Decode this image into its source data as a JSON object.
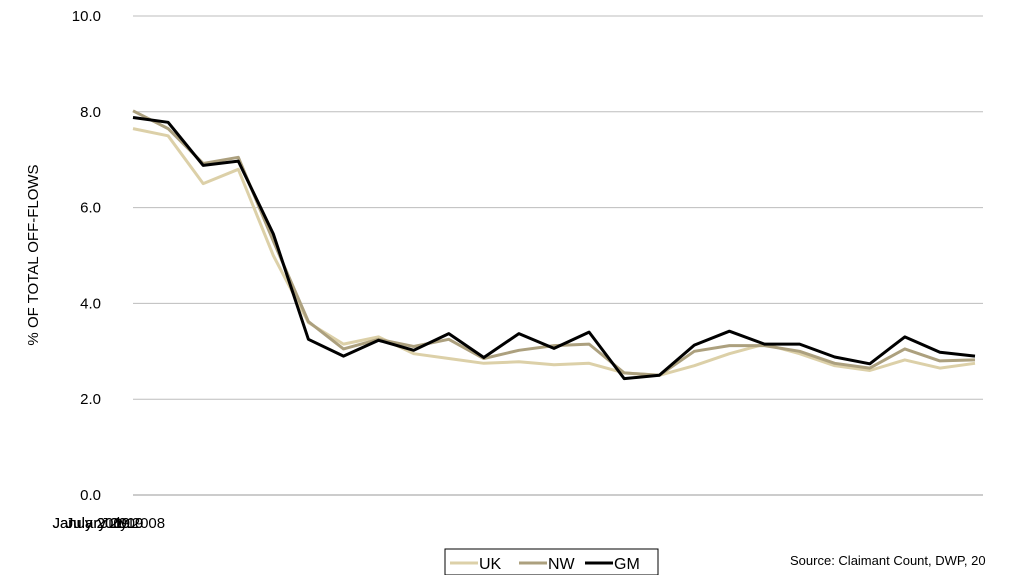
{
  "chart_data": {
    "type": "line",
    "x": [
      "July 2008",
      "Aug 2008",
      "Sep 2008",
      "Oct 2008",
      "Nov 2008",
      "Dec 2008",
      "Jan 2009",
      "Feb 2009",
      "Mar 2009",
      "Apr 2009",
      "May 2009",
      "Jun 2009",
      "Jul 2009",
      "Aug 2009",
      "Sep 2009",
      "Oct 2009",
      "Nov 2009",
      "Dec 2009",
      "Jan 2010",
      "Feb 2010",
      "Mar 2010",
      "Apr 2010",
      "May 2010",
      "Jun 2010",
      "Jul 2010"
    ],
    "x_tick_labels": [
      "July 2008",
      "January 2009",
      "July 2009",
      "January 2010",
      "July 2010"
    ],
    "ylabel": "% OF TOTAL OFF-FLOWS",
    "ylim": [
      0,
      10
    ],
    "yticks": [
      "0.0",
      "2.0",
      "4.0",
      "6.0",
      "8.0",
      "10.0"
    ],
    "grid": true,
    "legend_position": "bottom-center",
    "series": [
      {
        "name": "UK",
        "color": "#dcd0a8",
        "values": [
          7.65,
          7.5,
          6.5,
          6.8,
          5.0,
          3.6,
          3.15,
          3.3,
          2.95,
          2.85,
          2.75,
          2.78,
          2.72,
          2.75,
          2.55,
          2.5,
          2.7,
          2.95,
          3.15,
          2.95,
          2.7,
          2.6,
          2.82,
          2.65,
          2.75
        ]
      },
      {
        "name": "NW",
        "color": "#aca07e",
        "values": [
          8.02,
          7.65,
          6.92,
          7.05,
          5.3,
          3.62,
          3.05,
          3.25,
          3.1,
          3.25,
          2.85,
          3.02,
          3.12,
          3.15,
          2.55,
          2.5,
          3.0,
          3.12,
          3.12,
          3.0,
          2.75,
          2.65,
          3.05,
          2.8,
          2.82
        ]
      },
      {
        "name": "GM",
        "color": "#000000",
        "values": [
          7.88,
          7.78,
          6.88,
          6.97,
          5.45,
          3.25,
          2.9,
          3.23,
          3.02,
          3.37,
          2.87,
          3.37,
          3.06,
          3.4,
          2.43,
          2.5,
          3.13,
          3.42,
          3.15,
          3.15,
          2.88,
          2.74,
          3.3,
          2.98,
          2.9
        ]
      }
    ]
  },
  "source_text": "Source: Claimant Count, DWP, 20"
}
